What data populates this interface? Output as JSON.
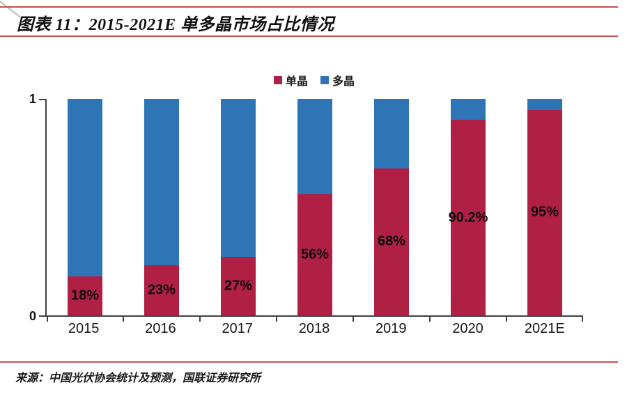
{
  "page": {
    "title": "图表 11：2015-2021E 单多晶市场占比情况",
    "source": "来源：中国光伏协会统计及预测，国联证券研究所"
  },
  "colors": {
    "mono_red": "#B02045",
    "poly_blue": "#2E75B6",
    "header_rule_red": "#C6504E",
    "axis": "#404040"
  },
  "chart_data": {
    "type": "bar",
    "stacked": true,
    "title": "2015-2021E 单多晶市场占比情况",
    "categories": [
      "2015",
      "2016",
      "2017",
      "2018",
      "2019",
      "2020",
      "2021E"
    ],
    "series": [
      {
        "name": "单晶",
        "color": "#B02045",
        "values": [
          0.18,
          0.23,
          0.27,
          0.56,
          0.68,
          0.902,
          0.95
        ],
        "labels": [
          "18%",
          "23%",
          "27%",
          "56%",
          "68%",
          "90.2%",
          "95%"
        ]
      },
      {
        "name": "多晶",
        "color": "#2E75B6",
        "values": [
          0.82,
          0.77,
          0.73,
          0.44,
          0.32,
          0.098,
          0.05
        ],
        "labels": []
      }
    ],
    "xlabel": "",
    "ylabel": "",
    "ylim": [
      0,
      1
    ],
    "yticks": [
      "0",
      "1"
    ],
    "grid": false,
    "legend_position": "top-center"
  }
}
